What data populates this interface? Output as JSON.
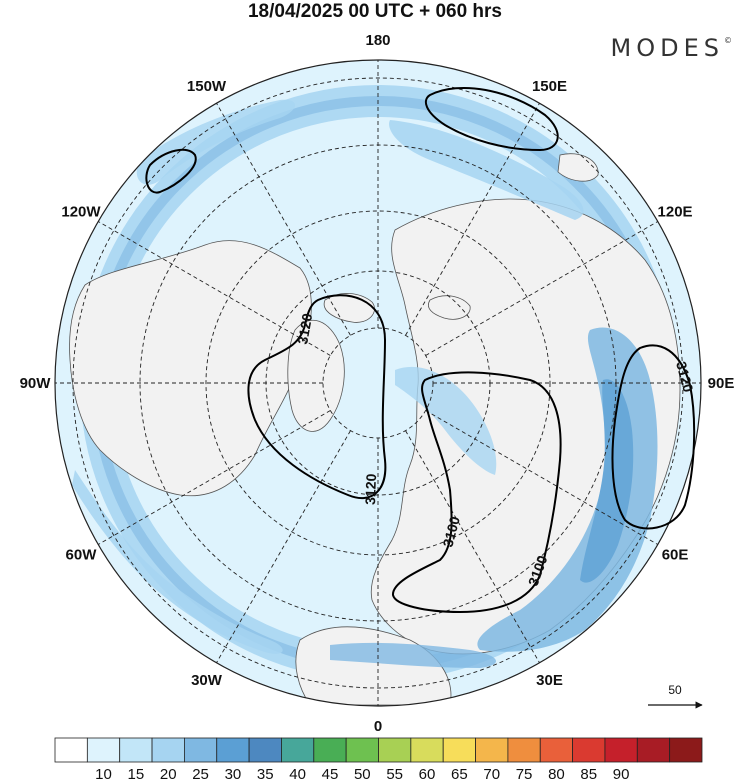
{
  "title": "18/04/2025  00 UTC  + 060 hrs",
  "brand": "MODES",
  "brand_mark": "©",
  "map": {
    "projection": "north polar stereographic",
    "longitude_labels": [
      {
        "text": "180",
        "lon": 180
      },
      {
        "text": "150E",
        "lon": 150
      },
      {
        "text": "120E",
        "lon": 120
      },
      {
        "text": "90E",
        "lon": 90
      },
      {
        "text": "60E",
        "lon": 60
      },
      {
        "text": "30E",
        "lon": 30
      },
      {
        "text": "0",
        "lon": 0
      },
      {
        "text": "30W",
        "lon": -30
      },
      {
        "text": "60W",
        "lon": -60
      },
      {
        "text": "90W",
        "lon": -90
      },
      {
        "text": "120W",
        "lon": -120
      },
      {
        "text": "150W",
        "lon": -150
      }
    ],
    "contour_labels": [
      "3120",
      "3120",
      "3100",
      "3100",
      "3120"
    ],
    "vector_reference_label": "50"
  },
  "colorbar": {
    "labels": [
      "10",
      "15",
      "20",
      "25",
      "30",
      "35",
      "40",
      "45",
      "50",
      "55",
      "60",
      "65",
      "70",
      "75",
      "80",
      "85",
      "90"
    ],
    "colors": [
      "#ffffff",
      "#def3fd",
      "#c2e6f8",
      "#a6d4f1",
      "#7fb8e2",
      "#5b9fd4",
      "#4d88c0",
      "#47a79a",
      "#49ae55",
      "#6ec150",
      "#a8d054",
      "#d8dc5c",
      "#f7dd5a",
      "#f4b64b",
      "#ef8e3e",
      "#e9603a",
      "#da3a30",
      "#c5202b",
      "#a81c25",
      "#8c1a1a"
    ]
  }
}
